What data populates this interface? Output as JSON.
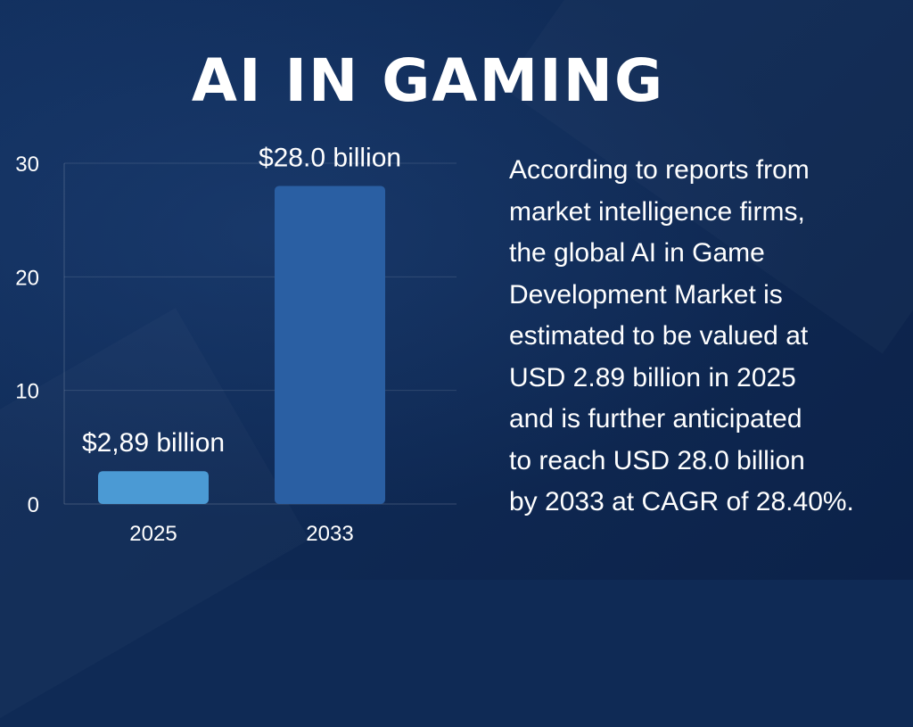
{
  "title": "AI IN GAMING",
  "chart_data": {
    "type": "bar",
    "categories": [
      "2025",
      "2033"
    ],
    "values": [
      2.89,
      28.0
    ],
    "data_labels": [
      "$2,89 billion",
      "$28.0 billion"
    ],
    "y_ticks": [
      0,
      10,
      20,
      30
    ],
    "y_tick_labels": [
      "0",
      "10",
      "20",
      "30"
    ],
    "ylim": [
      0,
      30
    ],
    "xlabel": "",
    "ylabel": "",
    "grid": true,
    "colors": [
      "#4b9ad4",
      "#2a5fa3"
    ]
  },
  "description": {
    "lines": [
      "According to reports from",
      "market intelligence firms,",
      "the global AI in Game",
      "Development Market is",
      "estimated to be valued at",
      "USD 2.89 billion in 2025",
      "and is further anticipated",
      "to reach USD 28.0 billion",
      "by 2033 at CAGR of 28.40%."
    ]
  }
}
